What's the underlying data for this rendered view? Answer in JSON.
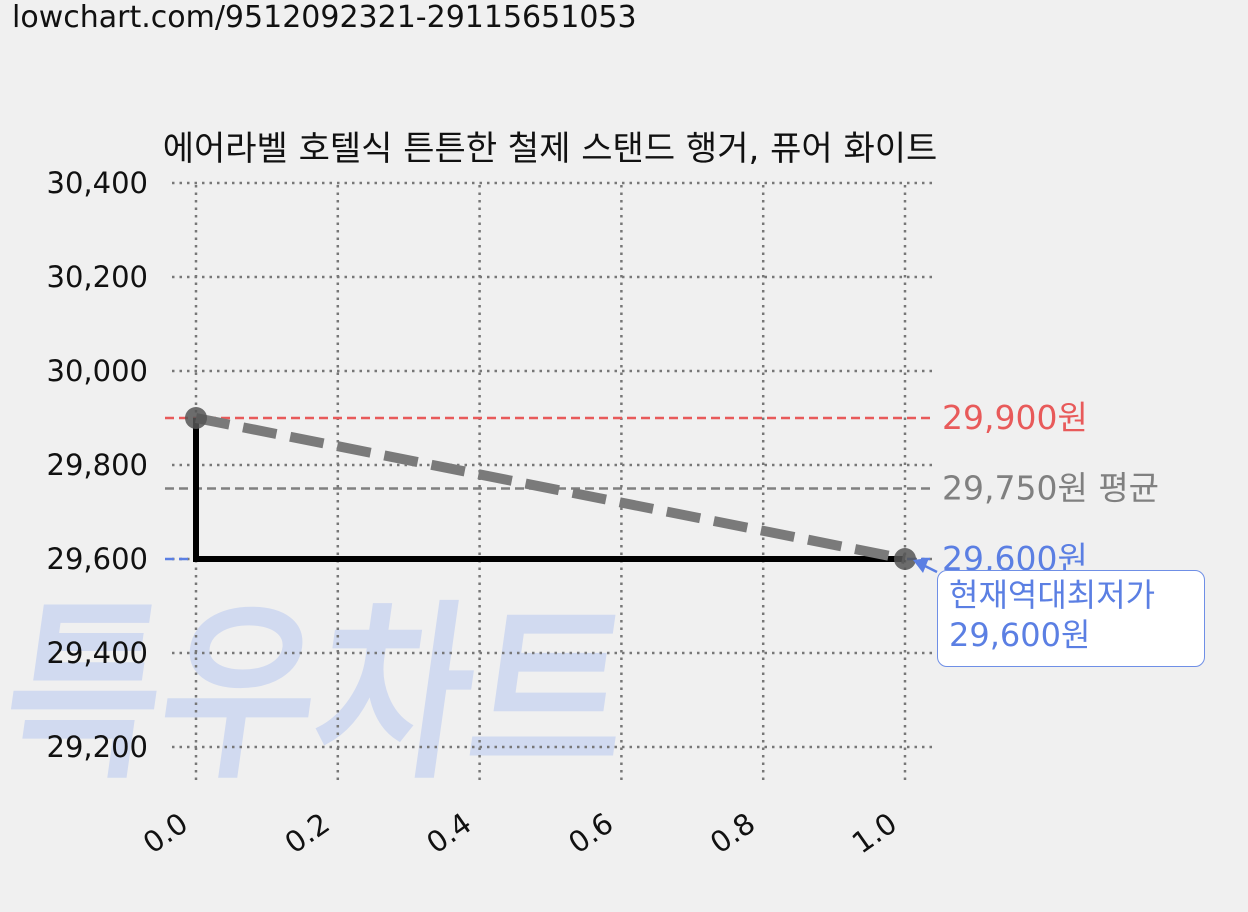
{
  "url": "lowchart.com/9512092321-29115651053",
  "watermark": "특우차트",
  "chart_data": {
    "type": "line",
    "title": "에어라벨 호텔식 튼튼한 철제 스탠드 행거, 퓨어 화이트",
    "xlabel": "",
    "ylabel": "",
    "xlim": [
      0.0,
      1.0
    ],
    "ylim": [
      29100,
      30400
    ],
    "x_ticks": [
      "0.0",
      "0.2",
      "0.4",
      "0.6",
      "0.8",
      "1.0"
    ],
    "y_ticks": [
      "29,200",
      "29,400",
      "29,600",
      "29,800",
      "30,000",
      "30,200",
      "30,400"
    ],
    "grid": true,
    "series": [
      {
        "style": "step-solid-black",
        "points": [
          {
            "x": 0.0,
            "y": 29900
          },
          {
            "x": 0.0,
            "y": 29600
          },
          {
            "x": 1.0,
            "y": 29600
          }
        ]
      },
      {
        "style": "dashed-gray-trend",
        "points": [
          {
            "x": 0.0,
            "y": 29900
          },
          {
            "x": 1.0,
            "y": 29600
          }
        ]
      }
    ],
    "reference_lines": [
      {
        "y": 29900,
        "label": "29,900원",
        "color": "#e85a5a"
      },
      {
        "y": 29750,
        "label": "29,750원 평균",
        "color": "#808080"
      },
      {
        "y": 29600,
        "label": "29,600원",
        "color": "#5b7fe3"
      }
    ],
    "annotation": {
      "lines": [
        "현재역대최저가",
        "29,600원"
      ],
      "color": "#5b7fe3",
      "target": {
        "x": 1.0,
        "y": 29600
      }
    }
  }
}
